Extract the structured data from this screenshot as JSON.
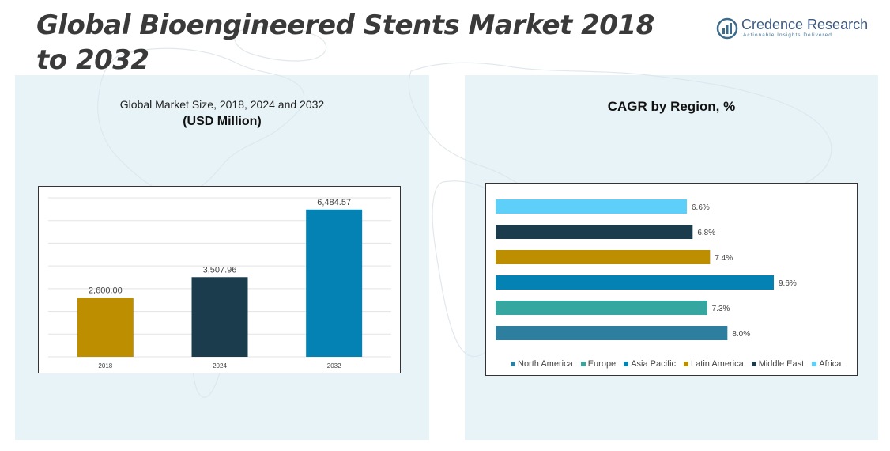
{
  "header": {
    "title": "Global Bioengineered Stents Market 2018 to 2032"
  },
  "logo": {
    "name": "Credence Research",
    "tagline": "Actionable Insights Delivered"
  },
  "colors": {
    "panel_bg": "#d6eaf2",
    "bar_2018": "#bd8e00",
    "bar_2024": "#1a3c4c",
    "bar_2032": "#0582b4",
    "north_america": "#2e7f9f",
    "europe": "#35a6a0",
    "asia_pacific": "#0582b4",
    "latin_america": "#bd8e00",
    "middle_east": "#1a3c4c",
    "africa": "#5ecff8"
  },
  "left_panel": {
    "subtitle": "Global Market Size, 2018, 2024 and 2032",
    "unit": "(USD Million)"
  },
  "right_panel": {
    "title": "CAGR by Region, %"
  },
  "chart_data": [
    {
      "type": "bar",
      "title": "Global Market Size, 2018, 2024 and 2032",
      "ylabel": "(USD Million)",
      "categories": [
        "2018",
        "2024",
        "2032"
      ],
      "values": [
        2600.0,
        3507.96,
        6484.57
      ],
      "value_labels": [
        "2,600.00",
        "3,507.96",
        "6,484.57"
      ],
      "ylim": [
        0,
        7000
      ],
      "grid": true
    },
    {
      "type": "bar",
      "orientation": "horizontal",
      "title": "CAGR by Region, %",
      "categories": [
        "North America",
        "Europe",
        "Asia Pacific",
        "Latin America",
        "Middle East",
        "Africa"
      ],
      "values": [
        8.0,
        7.3,
        9.6,
        7.4,
        6.8,
        6.6
      ],
      "value_labels": [
        "8.0%",
        "7.3%",
        "9.6%",
        "7.4%",
        "6.8%",
        "6.6%"
      ],
      "xlim": [
        0,
        12
      ],
      "legend": "bottom"
    }
  ]
}
